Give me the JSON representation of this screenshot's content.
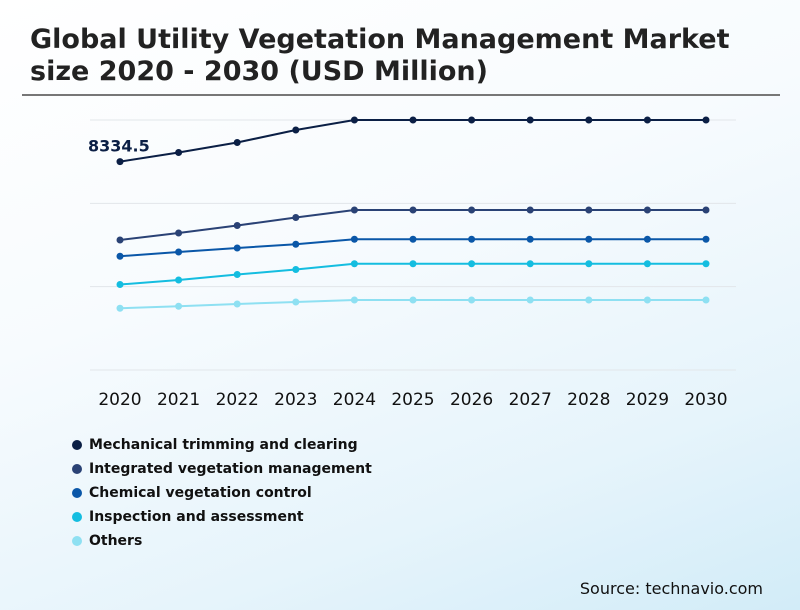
{
  "chart_data": {
    "type": "line",
    "title": "Global Utility Vegetation Management Market size 2020 - 2030 (USD Million)",
    "x": [
      "2020",
      "2021",
      "2022",
      "2023",
      "2024",
      "2025",
      "2026",
      "2027",
      "2028",
      "2029",
      "2030"
    ],
    "ylim": [
      0,
      10000
    ],
    "grid": true,
    "legend_position": "bottom-left",
    "annotations": [
      {
        "text": "8334.5",
        "series": "Mechanical trimming and clearing",
        "x": "2020"
      }
    ],
    "series": [
      {
        "name": "Mechanical trimming and clearing",
        "color": "#0b1f45",
        "values": [
          8334.5,
          8700,
          9100,
          9600,
          10000,
          10000,
          10000,
          10000,
          10000,
          10000,
          10000
        ]
      },
      {
        "name": "Integrated vegetation management",
        "color": "#2a4275",
        "values": [
          5200,
          5480,
          5780,
          6100,
          6400,
          6400,
          6400,
          6400,
          6400,
          6400,
          6400
        ]
      },
      {
        "name": "Chemical vegetation control",
        "color": "#0a57a8",
        "values": [
          4550,
          4720,
          4880,
          5030,
          5230,
          5230,
          5230,
          5230,
          5230,
          5230,
          5230
        ]
      },
      {
        "name": "Inspection and assessment",
        "color": "#14bde0",
        "values": [
          3420,
          3600,
          3820,
          4020,
          4250,
          4250,
          4250,
          4250,
          4250,
          4250,
          4250
        ]
      },
      {
        "name": "Others",
        "color": "#8ee0f2",
        "values": [
          2470,
          2550,
          2640,
          2720,
          2800,
          2800,
          2800,
          2800,
          2800,
          2800,
          2800
        ]
      }
    ]
  },
  "source": "Source: technavio.com"
}
